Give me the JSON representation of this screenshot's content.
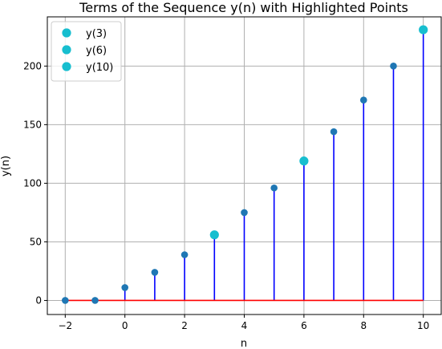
{
  "chart_data": {
    "type": "stem",
    "title": "Terms of the Sequence y(n) with Highlighted Points",
    "xlabel": "n",
    "ylabel": "y(n)",
    "xlim": [
      -2.6,
      10.6
    ],
    "ylim": [
      -12,
      242
    ],
    "xticks": [
      -2,
      0,
      2,
      4,
      6,
      8,
      10
    ],
    "xtick_labels": [
      "−2",
      "0",
      "2",
      "4",
      "6",
      "8",
      "10"
    ],
    "yticks": [
      0,
      50,
      100,
      150,
      200
    ],
    "ytick_labels": [
      "0",
      "50",
      "100",
      "150",
      "200"
    ],
    "grid": true,
    "legend_position": "top-left",
    "x": [
      -2,
      -1,
      0,
      1,
      2,
      3,
      4,
      5,
      6,
      7,
      8,
      9,
      10
    ],
    "values": [
      0,
      0,
      11,
      24,
      39,
      56,
      75,
      96,
      119,
      144,
      171,
      200,
      231
    ],
    "colors": {
      "stem": "#0000ff",
      "marker": "#1f77b4",
      "baseline": "#ff0000",
      "highlight": "#17becf",
      "grid": "#b0b0b0"
    },
    "highlighted": [
      {
        "name": "y(3)",
        "x": 3,
        "y": 56
      },
      {
        "name": "y(6)",
        "x": 6,
        "y": 119
      },
      {
        "name": "y(10)",
        "x": 10,
        "y": 231
      }
    ]
  }
}
